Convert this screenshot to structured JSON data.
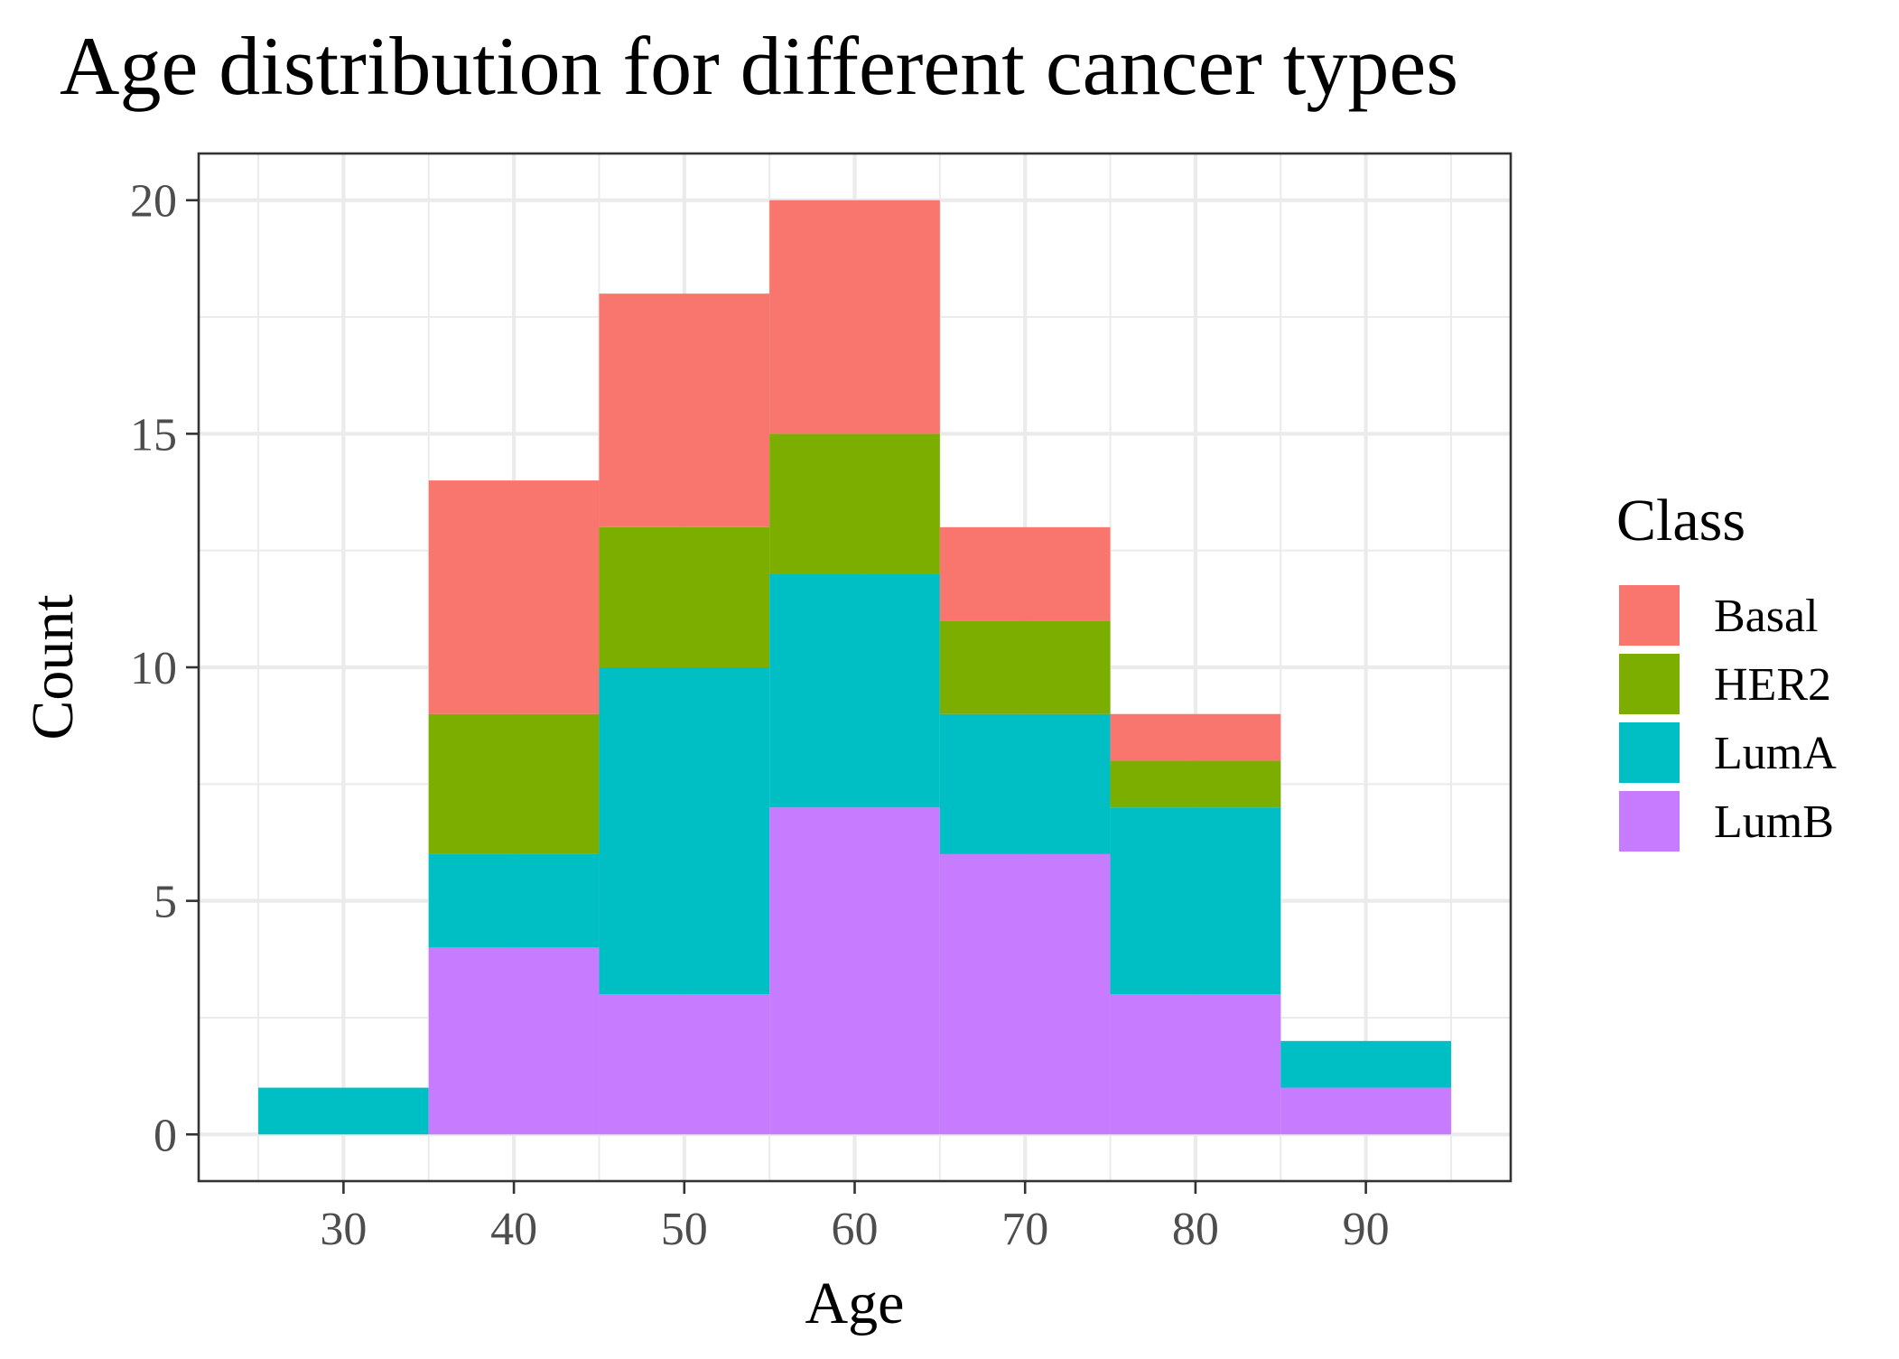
{
  "chart_data": {
    "type": "bar",
    "stacked": true,
    "histogram": true,
    "title": "Age distribution for different cancer types",
    "xlabel": "Age",
    "ylabel": "Count",
    "bin_centers": [
      30,
      40,
      50,
      60,
      70,
      80,
      90
    ],
    "bin_width": 10,
    "xlim": [
      21.5,
      98.5
    ],
    "ylim": [
      -1,
      21
    ],
    "xticks": [
      30,
      40,
      50,
      60,
      70,
      80,
      90
    ],
    "yticks": [
      0,
      5,
      10,
      15,
      20
    ],
    "grid": true,
    "stack_order_bottom_to_top": [
      "LumB",
      "LumA",
      "HER2",
      "Basal"
    ],
    "series": [
      {
        "name": "Basal",
        "color": "#F8766D",
        "values": [
          0,
          5,
          5,
          5,
          2,
          1,
          0
        ]
      },
      {
        "name": "HER2",
        "color": "#7CAE00",
        "values": [
          0,
          3,
          3,
          3,
          2,
          1,
          0
        ]
      },
      {
        "name": "LumA",
        "color": "#00BFC4",
        "values": [
          1,
          2,
          7,
          5,
          3,
          4,
          1
        ]
      },
      {
        "name": "LumB",
        "color": "#C77CFF",
        "values": [
          0,
          4,
          3,
          7,
          6,
          3,
          1
        ]
      }
    ],
    "legend": {
      "title": "Class",
      "position": "right"
    }
  }
}
